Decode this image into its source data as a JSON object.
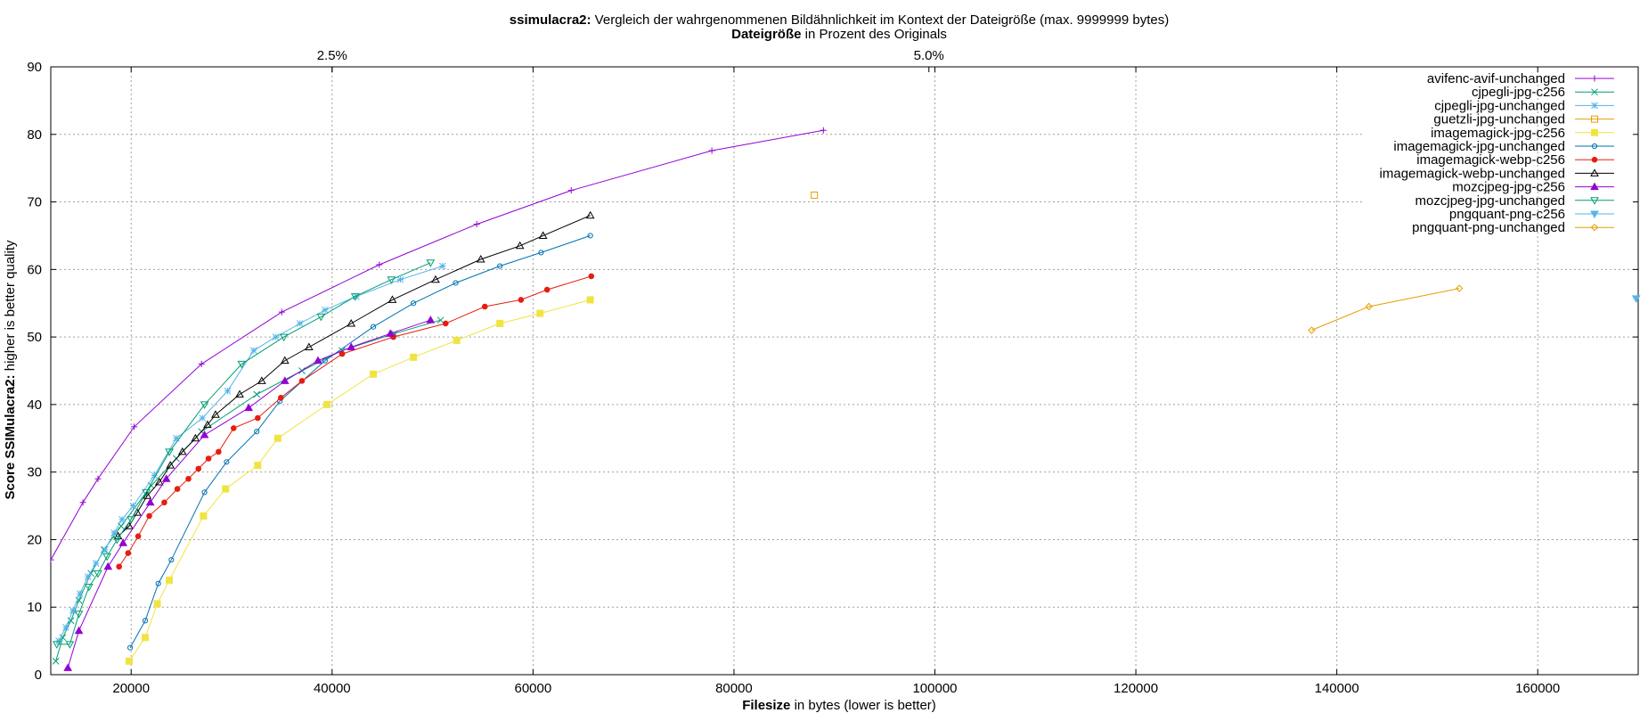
{
  "chart_data": {
    "type": "line",
    "title_bold": "ssimulacra2:",
    "title_rest": " Vergleich der wahrgenommenen Bildähnlichkeit im Kontext der Dateigröße (max. 9999999 bytes)",
    "x2label_bold": "Dateigröße",
    "x2label_rest": " in Prozent des Originals",
    "xlabel_bold": "Filesize",
    "xlabel_rest": " in bytes (lower is better)",
    "ylabel_bold": "Score SSIMulacra2:",
    "ylabel_rest": " higher is better quality",
    "xlim": [
      12000,
      170000
    ],
    "ylim": [
      0,
      90
    ],
    "xticks": [
      20000,
      40000,
      60000,
      80000,
      100000,
      120000,
      140000,
      160000
    ],
    "yticks": [
      0,
      10,
      20,
      30,
      40,
      50,
      60,
      70,
      80,
      90
    ],
    "x2ticks": [
      {
        "value": 40000,
        "label": "2.5%"
      },
      {
        "value": 99400,
        "label": "5.0%"
      }
    ],
    "grid": true,
    "legend_position": "top-right",
    "series": [
      {
        "name": "avifenc-avif-unchanged",
        "color": "#9400d3",
        "marker": "plus",
        "x": [
          12000,
          15200,
          16700,
          20300,
          27000,
          35000,
          44700,
          54400,
          63800,
          77800,
          88900
        ],
        "y": [
          17,
          25.5,
          29,
          36.7,
          46,
          53.7,
          60.7,
          66.7,
          71.7,
          77.6,
          80.6
        ]
      },
      {
        "name": "cjpegli-jpg-c256",
        "color": "#009e73",
        "marker": "x",
        "x": [
          12500,
          13200,
          14000,
          14800,
          16000,
          17300,
          19000,
          22000,
          24500,
          27000,
          32500,
          37000,
          41000,
          46200,
          50800
        ],
        "y": [
          2,
          5.5,
          8,
          11,
          15,
          18.5,
          22,
          28,
          32,
          36,
          41.5,
          45,
          48,
          50.5,
          52.5
        ]
      },
      {
        "name": "cjpegli-jpg-unchanged",
        "color": "#56b4e9",
        "marker": "star",
        "x": [
          12800,
          13500,
          14200,
          14900,
          15700,
          16500,
          17400,
          18300,
          19100,
          20200,
          22300,
          24500,
          27100,
          29600,
          32200,
          34400,
          36800,
          39300,
          42400,
          46800,
          51000
        ],
        "y": [
          5,
          7,
          9.5,
          12,
          14.5,
          16.5,
          18.5,
          21,
          23,
          25,
          29.5,
          35,
          38,
          42,
          48,
          50,
          52,
          54,
          56,
          58.5,
          60.5
        ]
      },
      {
        "name": "guetzli-jpg-unchanged",
        "color": "#e69f00",
        "marker": "square-open",
        "x": [
          88000
        ],
        "y": [
          71
        ]
      },
      {
        "name": "imagemagick-jpg-c256",
        "color": "#f0e442",
        "marker": "square-filled",
        "x": [
          19800,
          21400,
          22600,
          23800,
          27200,
          29400,
          32600,
          34600,
          39500,
          44100,
          48100,
          52400,
          56700,
          60700,
          65700
        ],
        "y": [
          2,
          5.5,
          10.5,
          14,
          23.5,
          27.5,
          31,
          35,
          40,
          44.5,
          47,
          49.5,
          52,
          53.5,
          55.5
        ]
      },
      {
        "name": "imagemagick-jpg-unchanged",
        "color": "#0072b2",
        "marker": "circle-open",
        "x": [
          19900,
          21400,
          22700,
          24000,
          27300,
          29500,
          32500,
          34800,
          39300,
          44100,
          48100,
          52300,
          56700,
          60800,
          65700
        ],
        "y": [
          4,
          8,
          13.5,
          17,
          27,
          31.5,
          36,
          40.5,
          46.5,
          51.5,
          55,
          58,
          60.5,
          62.5,
          65
        ]
      },
      {
        "name": "imagemagick-webp-c256",
        "color": "#e51e10",
        "marker": "circle-filled",
        "x": [
          18800,
          19700,
          20700,
          21800,
          23300,
          24600,
          25700,
          26700,
          27700,
          28700,
          30200,
          32600,
          34900,
          37000,
          41000,
          46100,
          51300,
          55200,
          58800,
          61400,
          65800
        ],
        "y": [
          16,
          18,
          20.5,
          23.5,
          25.5,
          27.5,
          29,
          30.5,
          32,
          33,
          36.5,
          38,
          41,
          43.5,
          47.5,
          50,
          52,
          54.5,
          55.5,
          57,
          59
        ]
      },
      {
        "name": "imagemagick-webp-unchanged",
        "color": "#000000",
        "marker": "triangle-open",
        "x": [
          18700,
          19800,
          20600,
          21600,
          22800,
          23900,
          25100,
          26400,
          27600,
          28400,
          30800,
          33000,
          35300,
          37700,
          41900,
          46000,
          50300,
          54800,
          58700,
          61000,
          65700
        ],
        "y": [
          20.5,
          22,
          24,
          26.5,
          28.5,
          31,
          33,
          35,
          37,
          38.5,
          41.5,
          43.5,
          46.5,
          48.5,
          52,
          55.5,
          58.5,
          61.5,
          63.5,
          65,
          68
        ]
      },
      {
        "name": "mozcjpeg-jpg-c256",
        "color": "#9400d3",
        "marker": "triangle-filled",
        "x": [
          13700,
          14800,
          17700,
          19200,
          21900,
          23500,
          27300,
          31700,
          35300,
          38600,
          41900,
          45800,
          49800
        ],
        "y": [
          1,
          6.5,
          16,
          19.5,
          25.5,
          29,
          35.5,
          39.5,
          43.5,
          46.5,
          48.5,
          50.5,
          52.5
        ]
      },
      {
        "name": "mozcjpeg-jpg-unchanged",
        "color": "#009e73",
        "marker": "triangle-down-open",
        "x": [
          12600,
          13900,
          14800,
          15800,
          16700,
          17600,
          18600,
          20000,
          21500,
          23800,
          27300,
          31000,
          35200,
          38900,
          42300,
          45900,
          49800
        ],
        "y": [
          4.5,
          4.5,
          9,
          13,
          15,
          17.5,
          20,
          23,
          27,
          33,
          40,
          46,
          50,
          53,
          56,
          58.5,
          61
        ]
      },
      {
        "name": "pngquant-png-c256",
        "color": "#56b4e9",
        "marker": "triangle-down-filled",
        "x": [
          169800
        ],
        "y": [
          55.7
        ]
      },
      {
        "name": "pngquant-png-unchanged",
        "color": "#e69f00",
        "marker": "diamond-open",
        "x": [
          137500,
          143200,
          152200
        ],
        "y": [
          51,
          54.5,
          57.2
        ]
      }
    ]
  }
}
